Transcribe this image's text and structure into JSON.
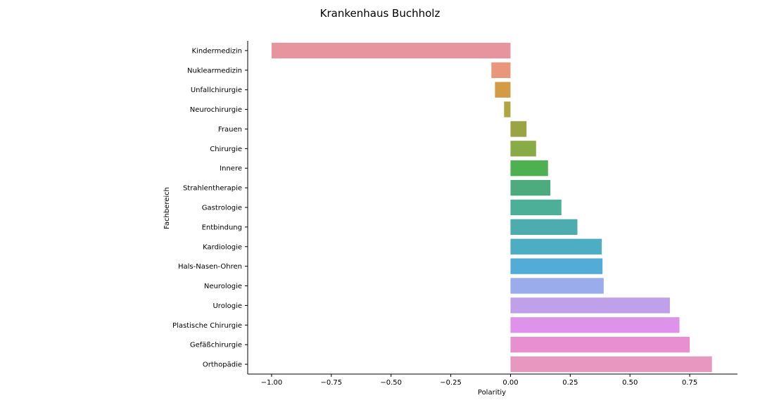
{
  "chart_data": {
    "type": "bar",
    "orientation": "horizontal",
    "title": "Krankenhaus Buchholz",
    "xlabel": "Polaritiy",
    "ylabel": "Fachbereich",
    "xlim": [
      -1.1,
      0.95
    ],
    "xticks": [
      -1.0,
      -0.75,
      -0.5,
      -0.25,
      0.0,
      0.25,
      0.5,
      0.75
    ],
    "xtick_labels": [
      "−1.00",
      "−0.75",
      "−0.50",
      "−0.25",
      "0.00",
      "0.25",
      "0.50",
      "0.75"
    ],
    "grid": false,
    "categories": [
      "Kindermedizin",
      "Nuklearmedizin",
      "Unfallchirurgie",
      "Neurochirurgie",
      "Frauen",
      "Chirurgie",
      "Innere",
      "Strahlentherapie",
      "Gastrologie",
      "Entbindung",
      "Kardiologie",
      "Hals-Nasen-Ohren",
      "Neurologie",
      "Urologie",
      "Plastische Chirurgie",
      "Gefäßchirurgie",
      "Orthopädie"
    ],
    "values": [
      -1.0,
      -0.08,
      -0.065,
      -0.027,
      0.067,
      0.107,
      0.157,
      0.167,
      0.213,
      0.28,
      0.382,
      0.385,
      0.39,
      0.667,
      0.707,
      0.75,
      0.843
    ],
    "colors": [
      "#e8949f",
      "#e8977a",
      "#d39b45",
      "#b0a443",
      "#9aa444",
      "#88ab45",
      "#4eb050",
      "#4dab7e",
      "#4daf98",
      "#4eabae",
      "#4dadc2",
      "#53abd8",
      "#9aacec",
      "#c0a0e8",
      "#de92ea",
      "#e88fd2",
      "#e898c0"
    ]
  }
}
